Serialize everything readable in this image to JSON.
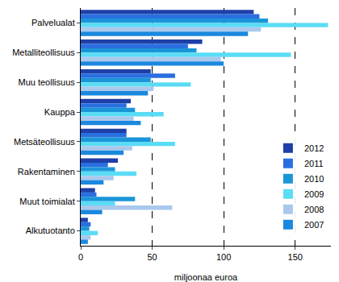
{
  "chart_data": {
    "type": "bar",
    "orientation": "horizontal",
    "x_label": "miljoonaa euroa",
    "categories": [
      "Palvelualat",
      "Metalliteollisuus",
      "Muu teollisuus",
      "Kauppa",
      "Metsäteollisuus",
      "Rakentaminen",
      "Muut toimialat",
      "Alkutuotanto"
    ],
    "series": [
      {
        "name": "2012",
        "color": "#1f3fa8",
        "values": [
          121,
          85,
          49,
          35,
          32,
          26,
          10,
          5
        ]
      },
      {
        "name": "2011",
        "color": "#2a6fe0",
        "values": [
          125,
          75,
          66,
          32,
          32,
          19,
          11,
          7
        ]
      },
      {
        "name": "2010",
        "color": "#1c95d8",
        "values": [
          131,
          81,
          49,
          38,
          49,
          24,
          38,
          6
        ]
      },
      {
        "name": "2009",
        "color": "#5adcf5",
        "values": [
          173,
          147,
          77,
          58,
          66,
          39,
          24,
          12
        ]
      },
      {
        "name": "2008",
        "color": "#aac8ec",
        "values": [
          126,
          98,
          51,
          37,
          36,
          23,
          64,
          7
        ]
      },
      {
        "name": "2007",
        "color": "#1a88de",
        "values": [
          117,
          100,
          47,
          42,
          30,
          16,
          15,
          5
        ]
      }
    ],
    "xlim": [
      0,
      175
    ],
    "xticks": [
      0,
      50,
      100,
      150
    ],
    "grid": true,
    "legend": "lower right"
  }
}
